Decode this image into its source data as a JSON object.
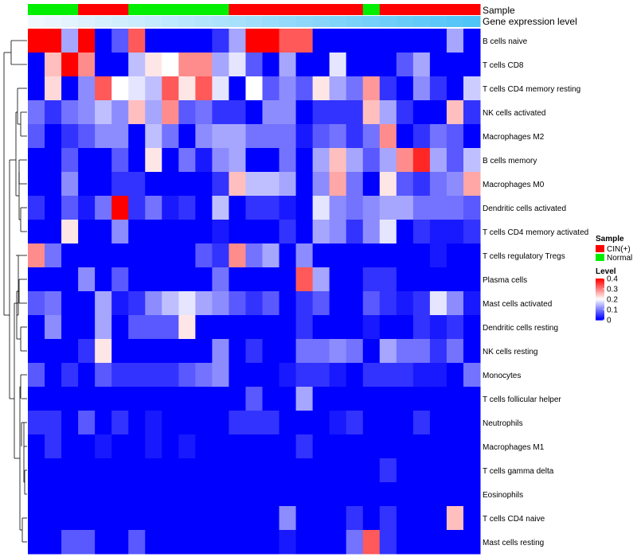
{
  "chart_data": {
    "type": "heatmap",
    "title": "",
    "annotations": {
      "sample_label": "Sample",
      "expression_label": "Gene expression level",
      "sample_groups": [
        "Normal",
        "Normal",
        "Normal",
        "CIN(+)",
        "CIN(+)",
        "CIN(+)",
        "Normal",
        "Normal",
        "Normal",
        "Normal",
        "Normal",
        "Normal",
        "CIN(+)",
        "CIN(+)",
        "CIN(+)",
        "CIN(+)",
        "CIN(+)",
        "CIN(+)",
        "CIN(+)",
        "CIN(+)",
        "Normal",
        "CIN(+)",
        "CIN(+)",
        "CIN(+)",
        "CIN(+)",
        "CIN(+)",
        "CIN(+)"
      ],
      "expression_levels": [
        0.02,
        0.04,
        0.06,
        0.08,
        0.1,
        0.12,
        0.14,
        0.16,
        0.18,
        0.2,
        0.22,
        0.24,
        0.26,
        0.28,
        0.3,
        0.32,
        0.34,
        0.36,
        0.38,
        0.4,
        0.42,
        0.44,
        0.46,
        0.48,
        0.5,
        0.52,
        0.54
      ]
    },
    "legend": {
      "sample_title": "Sample",
      "sample_items": [
        {
          "label": "CIN(+)",
          "color": "#ff0000"
        },
        {
          "label": "Normal",
          "color": "#00ee00"
        }
      ],
      "level_title": "Level",
      "level_ticks": [
        "0.4",
        "0.3",
        "0.2",
        "0.1",
        "0"
      ],
      "level_values": [
        0.4,
        0.3,
        0.2,
        0.1,
        0
      ]
    },
    "colors": {
      "low": "#0000ff",
      "mid": "#ffffff",
      "high": "#ff0000"
    },
    "scale": {
      "min": 0,
      "mid": 0.2,
      "max": 0.4
    },
    "rows": [
      "B cells naive",
      "T cells CD8",
      "T cells CD4 memory resting",
      "NK cells activated",
      "Macrophages M2",
      "B cells memory",
      "Macrophages M0",
      "Dendritic cells activated",
      "T cells CD4 memory activated",
      "T cells regulatory  Tregs",
      "Plasma cells",
      "Mast cells activated",
      "Dendritic cells resting",
      "NK cells resting",
      "Monocytes",
      "T cells follicular helper",
      "Neutrophils",
      "Macrophages M1",
      "T cells gamma delta",
      "Eosinophils",
      "T cells CD4 naive",
      "Mast cells resting"
    ],
    "values": [
      [
        0.4,
        0.4,
        0.13,
        0.4,
        0.0,
        0.07,
        0.33,
        0.0,
        0.0,
        0.0,
        0.0,
        0.04,
        0.13,
        0.4,
        0.4,
        0.33,
        0.33,
        0.0,
        0.0,
        0.0,
        0.0,
        0.0,
        0.0,
        0.0,
        0.0,
        0.13,
        0.0
      ],
      [
        0.0,
        0.25,
        0.4,
        0.29,
        0.0,
        0.0,
        0.15,
        0.22,
        0.2,
        0.29,
        0.29,
        0.13,
        0.18,
        0.07,
        0.0,
        0.13,
        0.0,
        0.0,
        0.18,
        0.0,
        0.0,
        0.0,
        0.07,
        0.13,
        0.0,
        0.0,
        0.0
      ],
      [
        0.0,
        0.23,
        0.0,
        0.11,
        0.33,
        0.2,
        0.18,
        0.15,
        0.33,
        0.22,
        0.33,
        0.18,
        0.0,
        0.2,
        0.07,
        0.11,
        0.07,
        0.22,
        0.13,
        0.09,
        0.28,
        0.04,
        0.0,
        0.11,
        0.04,
        0.0,
        0.16
      ],
      [
        0.09,
        0.04,
        0.09,
        0.11,
        0.15,
        0.11,
        0.25,
        0.13,
        0.29,
        0.07,
        0.09,
        0.04,
        0.04,
        0.0,
        0.11,
        0.11,
        0.0,
        0.04,
        0.04,
        0.04,
        0.25,
        0.13,
        0.04,
        0.0,
        0.0,
        0.25,
        0.04
      ],
      [
        0.07,
        0.0,
        0.04,
        0.07,
        0.11,
        0.11,
        0.0,
        0.15,
        0.09,
        0.0,
        0.11,
        0.13,
        0.13,
        0.09,
        0.09,
        0.09,
        0.02,
        0.07,
        0.09,
        0.04,
        0.09,
        0.29,
        0.0,
        0.04,
        0.09,
        0.07,
        0.0
      ],
      [
        0.0,
        0.0,
        0.07,
        0.0,
        0.0,
        0.07,
        0.0,
        0.22,
        0.0,
        0.09,
        0.02,
        0.11,
        0.13,
        0.0,
        0.0,
        0.09,
        0.0,
        0.13,
        0.25,
        0.13,
        0.07,
        0.13,
        0.29,
        0.37,
        0.13,
        0.07,
        0.15
      ],
      [
        0.0,
        0.0,
        0.11,
        0.0,
        0.0,
        0.04,
        0.04,
        0.0,
        0.0,
        0.0,
        0.0,
        0.04,
        0.25,
        0.15,
        0.15,
        0.13,
        0.0,
        0.11,
        0.27,
        0.09,
        0.0,
        0.22,
        0.07,
        0.04,
        0.09,
        0.11,
        0.27
      ],
      [
        0.04,
        0.0,
        0.07,
        0.02,
        0.09,
        0.4,
        0.04,
        0.09,
        0.02,
        0.04,
        0.0,
        0.15,
        0.0,
        0.04,
        0.04,
        0.02,
        0.0,
        0.18,
        0.11,
        0.09,
        0.11,
        0.13,
        0.13,
        0.09,
        0.09,
        0.09,
        0.07
      ],
      [
        0.0,
        0.0,
        0.22,
        0.0,
        0.0,
        0.11,
        0.0,
        0.0,
        0.0,
        0.0,
        0.0,
        0.02,
        0.0,
        0.0,
        0.0,
        0.04,
        0.0,
        0.13,
        0.11,
        0.04,
        0.11,
        0.18,
        0.0,
        0.04,
        0.02,
        0.02,
        0.04
      ],
      [
        0.29,
        0.09,
        0.0,
        0.0,
        0.0,
        0.0,
        0.0,
        0.0,
        0.0,
        0.0,
        0.07,
        0.04,
        0.29,
        0.09,
        0.13,
        0.0,
        0.11,
        0.0,
        0.0,
        0.0,
        0.0,
        0.0,
        0.0,
        0.0,
        0.02,
        0.0,
        0.0
      ],
      [
        0.0,
        0.0,
        0.0,
        0.11,
        0.0,
        0.07,
        0.0,
        0.0,
        0.0,
        0.0,
        0.0,
        0.09,
        0.0,
        0.0,
        0.0,
        0.0,
        0.33,
        0.13,
        0.0,
        0.0,
        0.04,
        0.04,
        0.0,
        0.0,
        0.0,
        0.0,
        0.0
      ],
      [
        0.07,
        0.09,
        0.0,
        0.0,
        0.13,
        0.02,
        0.04,
        0.11,
        0.15,
        0.18,
        0.13,
        0.11,
        0.07,
        0.04,
        0.07,
        0.0,
        0.04,
        0.07,
        0.0,
        0.0,
        0.07,
        0.04,
        0.02,
        0.04,
        0.18,
        0.11,
        0.02
      ],
      [
        0.0,
        0.11,
        0.0,
        0.0,
        0.13,
        0.0,
        0.07,
        0.07,
        0.07,
        0.22,
        0.0,
        0.0,
        0.0,
        0.0,
        0.0,
        0.0,
        0.04,
        0.0,
        0.0,
        0.0,
        0.02,
        0.0,
        0.0,
        0.04,
        0.02,
        0.04,
        0.0
      ],
      [
        0.0,
        0.0,
        0.0,
        0.04,
        0.22,
        0.0,
        0.0,
        0.0,
        0.0,
        0.0,
        0.0,
        0.11,
        0.0,
        0.04,
        0.0,
        0.0,
        0.09,
        0.09,
        0.11,
        0.09,
        0.0,
        0.13,
        0.09,
        0.09,
        0.04,
        0.09,
        0.0
      ],
      [
        0.07,
        0.0,
        0.04,
        0.0,
        0.07,
        0.04,
        0.04,
        0.04,
        0.04,
        0.07,
        0.09,
        0.11,
        0.0,
        0.0,
        0.0,
        0.02,
        0.04,
        0.04,
        0.02,
        0.0,
        0.04,
        0.04,
        0.04,
        0.02,
        0.02,
        0.0,
        0.09
      ],
      [
        0.0,
        0.0,
        0.0,
        0.0,
        0.0,
        0.0,
        0.0,
        0.0,
        0.0,
        0.0,
        0.0,
        0.0,
        0.0,
        0.07,
        0.0,
        0.0,
        0.13,
        0.0,
        0.0,
        0.0,
        0.0,
        0.0,
        0.0,
        0.0,
        0.0,
        0.0,
        0.0
      ],
      [
        0.04,
        0.04,
        0.0,
        0.07,
        0.0,
        0.04,
        0.0,
        0.02,
        0.0,
        0.0,
        0.0,
        0.0,
        0.04,
        0.04,
        0.04,
        0.0,
        0.0,
        0.0,
        0.02,
        0.04,
        0.0,
        0.0,
        0.0,
        0.04,
        0.0,
        0.0,
        0.0
      ],
      [
        0.0,
        0.04,
        0.0,
        0.0,
        0.02,
        0.0,
        0.0,
        0.02,
        0.0,
        0.02,
        0.0,
        0.0,
        0.0,
        0.0,
        0.0,
        0.0,
        0.04,
        0.0,
        0.0,
        0.0,
        0.0,
        0.0,
        0.0,
        0.0,
        0.0,
        0.0,
        0.0
      ],
      [
        0.0,
        0.0,
        0.0,
        0.0,
        0.0,
        0.0,
        0.0,
        0.0,
        0.0,
        0.0,
        0.0,
        0.0,
        0.0,
        0.0,
        0.0,
        0.0,
        0.0,
        0.0,
        0.0,
        0.0,
        0.0,
        0.04,
        0.0,
        0.0,
        0.0,
        0.0,
        0.0
      ],
      [
        0.0,
        0.0,
        0.0,
        0.0,
        0.0,
        0.0,
        0.0,
        0.0,
        0.0,
        0.0,
        0.0,
        0.0,
        0.0,
        0.0,
        0.0,
        0.0,
        0.0,
        0.0,
        0.0,
        0.0,
        0.0,
        0.0,
        0.0,
        0.0,
        0.0,
        0.0,
        0.0
      ],
      [
        0.0,
        0.0,
        0.0,
        0.0,
        0.0,
        0.0,
        0.0,
        0.0,
        0.0,
        0.0,
        0.0,
        0.0,
        0.0,
        0.0,
        0.0,
        0.11,
        0.0,
        0.0,
        0.0,
        0.04,
        0.0,
        0.04,
        0.0,
        0.0,
        0.0,
        0.25,
        0.0
      ],
      [
        0.0,
        0.0,
        0.07,
        0.07,
        0.0,
        0.0,
        0.07,
        0.0,
        0.0,
        0.0,
        0.0,
        0.0,
        0.0,
        0.0,
        0.0,
        0.02,
        0.0,
        0.0,
        0.0,
        0.09,
        0.33,
        0.04,
        0.0,
        0.0,
        0.0,
        0.0,
        0.0
      ]
    ]
  }
}
